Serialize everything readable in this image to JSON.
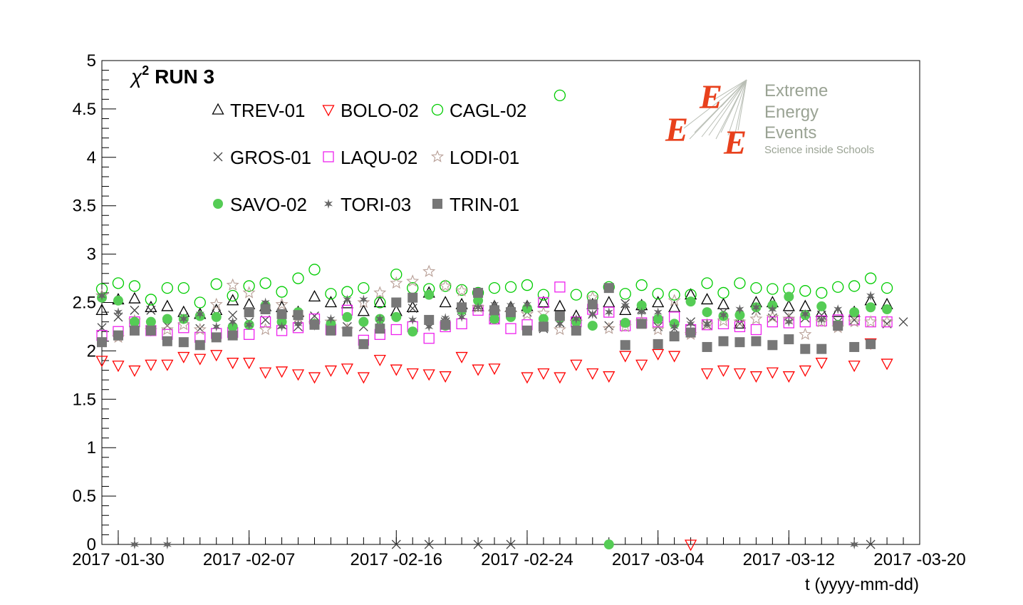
{
  "chart_data": {
    "type": "scatter",
    "title": "χ² RUN 3",
    "title_symbol": "χ",
    "title_sup": "2",
    "title_rest": " RUN 3",
    "xlabel": "t (yyyy-mm-dd)",
    "ylabel": "",
    "xlim": [
      "2017-01-29",
      "2017-03-20"
    ],
    "ylim": [
      0,
      5
    ],
    "y_ticks": [
      "0",
      "0.5",
      "1",
      "1.5",
      "2",
      "2.5",
      "3",
      "3.5",
      "4",
      "4.5",
      "5"
    ],
    "x_ticks": [
      "2017 -01-30",
      "2017 -02-07",
      "2017 -02-16",
      "2017 -02-24",
      "2017 -03-04",
      "2017 -03-12",
      "2017 -03-20"
    ],
    "x_tick_dates": [
      "2017-01-30",
      "2017-02-07",
      "2017-02-16",
      "2017-02-24",
      "2017-03-04",
      "2017-03-12",
      "2017-03-20"
    ],
    "grid": false,
    "legend_position": "top-left",
    "x": [
      "2017-01-29",
      "2017-01-30",
      "2017-01-31",
      "2017-02-01",
      "2017-02-02",
      "2017-02-03",
      "2017-02-04",
      "2017-02-05",
      "2017-02-06",
      "2017-02-07",
      "2017-02-08",
      "2017-02-09",
      "2017-02-10",
      "2017-02-11",
      "2017-02-12",
      "2017-02-13",
      "2017-02-14",
      "2017-02-15",
      "2017-02-16",
      "2017-02-17",
      "2017-02-18",
      "2017-02-19",
      "2017-02-20",
      "2017-02-21",
      "2017-02-22",
      "2017-02-23",
      "2017-02-24",
      "2017-02-25",
      "2017-02-26",
      "2017-02-27",
      "2017-02-28",
      "2017-03-01",
      "2017-03-02",
      "2017-03-03",
      "2017-03-04",
      "2017-03-05",
      "2017-03-06",
      "2017-03-07",
      "2017-03-08",
      "2017-03-09",
      "2017-03-10",
      "2017-03-11",
      "2017-03-12",
      "2017-03-13",
      "2017-03-14",
      "2017-03-15",
      "2017-03-16",
      "2017-03-17",
      "2017-03-18",
      "2017-03-19"
    ],
    "series": [
      {
        "name": "TREV-01",
        "marker": "triangle-up-open",
        "color": "#000000",
        "values": [
          2.42,
          2.53,
          2.54,
          2.45,
          2.46,
          2.4,
          2.38,
          2.42,
          2.52,
          2.48,
          2.46,
          2.45,
          2.4,
          2.56,
          2.5,
          2.49,
          2.41,
          2.5,
          2.41,
          2.45,
          2.6,
          2.5,
          2.48,
          2.46,
          2.46,
          2.45,
          2.46,
          2.5,
          2.46,
          2.36,
          2.48,
          2.5,
          2.42,
          2.47,
          2.5,
          2.45,
          2.58,
          2.53,
          2.48,
          2.28,
          2.5,
          2.5,
          2.46,
          2.46,
          2.4,
          2.4,
          2.4,
          2.52,
          2.48,
          null
        ]
      },
      {
        "name": "BOLO-02",
        "marker": "triangle-down-open",
        "color": "#ff0000",
        "values": [
          1.9,
          1.85,
          1.8,
          1.86,
          1.86,
          1.94,
          1.92,
          1.96,
          1.88,
          1.88,
          1.78,
          1.79,
          1.76,
          1.73,
          1.8,
          1.82,
          1.73,
          1.91,
          1.81,
          1.77,
          1.76,
          1.74,
          1.94,
          1.81,
          1.82,
          null,
          1.73,
          1.77,
          1.73,
          1.86,
          1.77,
          1.74,
          1.95,
          1.86,
          1.97,
          1.95,
          0.0,
          1.77,
          1.8,
          1.77,
          1.74,
          1.78,
          1.74,
          1.8,
          1.88,
          null,
          1.85,
          2.08,
          1.87,
          null
        ]
      },
      {
        "name": "CAGL-02",
        "marker": "circle-open",
        "color": "#00cc00",
        "values": [
          2.64,
          2.7,
          2.67,
          2.53,
          2.65,
          2.65,
          2.5,
          2.69,
          2.57,
          2.67,
          2.7,
          2.61,
          2.75,
          2.84,
          2.59,
          2.61,
          2.65,
          2.5,
          2.79,
          2.65,
          2.64,
          2.67,
          2.63,
          2.6,
          2.65,
          2.66,
          2.68,
          2.58,
          4.64,
          2.58,
          2.56,
          2.66,
          2.59,
          2.68,
          2.59,
          2.58,
          2.58,
          2.7,
          2.6,
          2.7,
          2.65,
          2.64,
          2.64,
          2.62,
          2.6,
          2.66,
          2.67,
          2.75,
          2.65,
          null
        ]
      },
      {
        "name": "GROS-01",
        "marker": "cross",
        "color": "#444444",
        "values": [
          2.24,
          2.35,
          2.42,
          2.42,
          2.26,
          2.35,
          2.23,
          2.38,
          2.37,
          2.3,
          2.32,
          2.27,
          2.25,
          2.36,
          2.25,
          2.25,
          2.25,
          2.31,
          0.0,
          2.44,
          0.0,
          2.3,
          2.42,
          0.0,
          2.33,
          0.0,
          2.4,
          2.23,
          2.29,
          2.26,
          2.38,
          2.26,
          2.49,
          2.43,
          2.25,
          2.23,
          2.3,
          2.27,
          2.4,
          2.28,
          2.42,
          2.34,
          2.36,
          2.34,
          2.37,
          2.3,
          2.32,
          0.0,
          2.28,
          2.3
        ]
      },
      {
        "name": "LAQU-02",
        "marker": "square-open",
        "color": "#ee22ee",
        "values": [
          2.16,
          2.2,
          2.3,
          2.21,
          2.17,
          2.24,
          2.14,
          2.18,
          2.19,
          2.17,
          2.3,
          2.21,
          2.24,
          2.33,
          2.22,
          2.42,
          2.11,
          2.17,
          2.22,
          2.25,
          2.13,
          2.25,
          2.28,
          2.42,
          2.33,
          2.23,
          2.27,
          2.5,
          2.66,
          2.3,
          2.43,
          2.4,
          2.26,
          2.29,
          2.3,
          2.35,
          2.22,
          2.27,
          2.28,
          2.25,
          2.22,
          2.3,
          2.29,
          2.3,
          2.31,
          2.32,
          2.32,
          2.3,
          2.3,
          null
        ]
      },
      {
        "name": "LODI-01",
        "marker": "star-open",
        "color": "#b89f96",
        "values": [
          2.57,
          2.14,
          2.31,
          2.21,
          2.22,
          2.27,
          2.22,
          2.48,
          2.68,
          2.6,
          2.22,
          2.48,
          2.35,
          2.28,
          2.3,
          2.22,
          2.5,
          2.6,
          2.7,
          2.72,
          2.82,
          2.67,
          2.62,
          2.45,
          2.4,
          2.39,
          2.38,
          2.39,
          2.22,
          2.3,
          2.55,
          2.23,
          2.25,
          2.3,
          2.22,
          2.52,
          2.17,
          2.27,
          2.31,
          2.3,
          2.33,
          2.35,
          2.33,
          2.17,
          2.3,
          2.24,
          2.3,
          2.3,
          2.3,
          null
        ]
      },
      {
        "name": "SAVO-02",
        "marker": "circle-filled",
        "color": "#55cc55",
        "values": [
          2.55,
          2.52,
          2.3,
          2.3,
          2.33,
          2.33,
          2.36,
          2.35,
          2.25,
          2.27,
          2.47,
          2.3,
          2.4,
          2.28,
          2.28,
          2.35,
          2.3,
          2.33,
          2.35,
          2.2,
          2.58,
          2.26,
          2.42,
          2.52,
          2.33,
          2.35,
          2.44,
          2.33,
          2.34,
          2.3,
          2.26,
          0.0,
          2.29,
          2.47,
          2.33,
          2.28,
          2.51,
          2.4,
          2.36,
          2.37,
          2.45,
          2.47,
          2.56,
          2.37,
          2.46,
          2.27,
          2.4,
          2.45,
          2.43,
          null
        ]
      },
      {
        "name": "TORI-03",
        "marker": "star-filled",
        "color": "#666666",
        "values": [
          2.57,
          2.4,
          0.0,
          2.2,
          0.0,
          2.33,
          2.38,
          2.25,
          2.3,
          2.27,
          2.5,
          2.25,
          2.28,
          2.26,
          2.33,
          2.53,
          2.53,
          2.33,
          2.5,
          2.32,
          2.25,
          2.34,
          2.35,
          2.45,
          2.48,
          2.47,
          2.48,
          2.26,
          2.28,
          2.33,
          2.38,
          2.4,
          2.47,
          2.4,
          2.4,
          2.25,
          2.28,
          2.28,
          2.37,
          2.43,
          2.45,
          2.43,
          2.3,
          2.38,
          2.32,
          2.43,
          0.0,
          2.57,
          null,
          null
        ]
      },
      {
        "name": "TRIN-01",
        "marker": "square-filled",
        "color": "#777777",
        "values": [
          2.09,
          2.16,
          2.21,
          2.21,
          2.1,
          2.09,
          2.06,
          2.14,
          2.16,
          2.4,
          2.43,
          2.38,
          2.37,
          2.27,
          2.21,
          2.2,
          2.07,
          2.23,
          2.5,
          2.55,
          2.32,
          2.27,
          2.45,
          2.6,
          2.42,
          2.4,
          2.21,
          2.25,
          2.36,
          2.21,
          2.48,
          2.65,
          2.06,
          2.28,
          2.07,
          2.15,
          2.19,
          2.04,
          2.1,
          2.09,
          2.1,
          2.06,
          2.12,
          2.02,
          2.02,
          2.26,
          2.04,
          2.07,
          null,
          null
        ]
      }
    ]
  },
  "logo": {
    "line1": "Extreme",
    "line2": "Energy",
    "line3": "Events",
    "line4": "Science inside Schools",
    "letter": "E",
    "accent_color": "#e8401c",
    "text_color": "#9aa394"
  }
}
